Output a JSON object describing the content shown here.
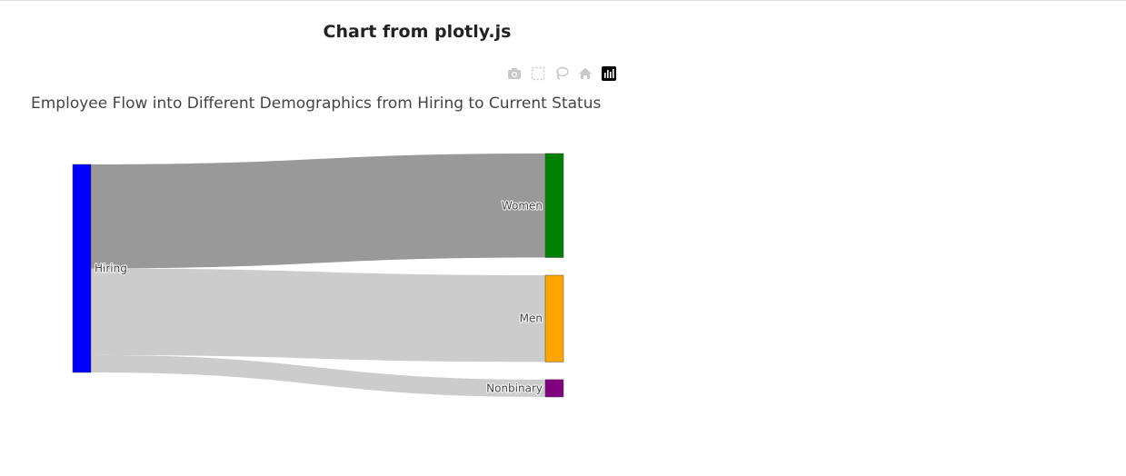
{
  "page": {
    "title": "Chart from plotly.js"
  },
  "modebar": {
    "buttons": [
      {
        "icon": "camera-icon",
        "active": false
      },
      {
        "icon": "box-select-icon",
        "active": false
      },
      {
        "icon": "lasso-icon",
        "active": false
      },
      {
        "icon": "home-icon",
        "active": false
      },
      {
        "icon": "plotly-logo-icon",
        "active": true
      }
    ]
  },
  "chart_data": {
    "type": "sankey",
    "title": "Employee Flow into Different Demographics from Hiring to Current Status",
    "nodes": [
      {
        "label": "Hiring",
        "color": "#0000ff"
      },
      {
        "label": "Women",
        "color": "#008000"
      },
      {
        "label": "Men",
        "color": "#ffa500"
      },
      {
        "label": "Nonbinary",
        "color": "#800080"
      }
    ],
    "links": [
      {
        "source": 0,
        "target": 1,
        "value": 12,
        "color": "#999999"
      },
      {
        "source": 0,
        "target": 2,
        "value": 10,
        "color": "#cccccc"
      },
      {
        "source": 0,
        "target": 3,
        "value": 2,
        "color": "#cccccc"
      }
    ]
  }
}
